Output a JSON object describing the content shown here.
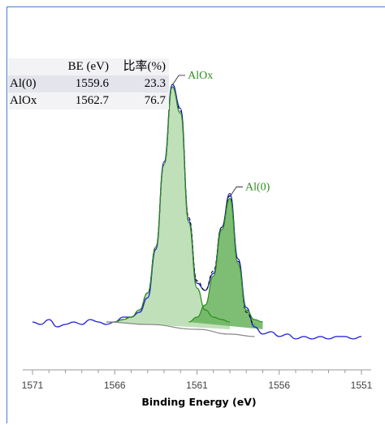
{
  "chart_data": {
    "type": "line",
    "title": "",
    "xlabel": "Binding Energy (eV)",
    "ylabel": "",
    "x_reversed": true,
    "xlim": [
      1571,
      1551
    ],
    "x_ticks": [
      1571,
      1566,
      1561,
      1556,
      1551
    ],
    "grid": false,
    "table": {
      "headers": [
        "",
        "BE (eV)",
        "比率(%)"
      ],
      "rows": [
        [
          "Al(0)",
          "1559.6",
          "23.3"
        ],
        [
          "AlOx",
          "1562.7",
          "76.7"
        ]
      ]
    },
    "annotations": [
      {
        "text": "AlOx",
        "x": 1562.2,
        "color": "#2e8b1e"
      },
      {
        "text": "Al(0)",
        "x": 1559.1,
        "color": "#2e8b1e"
      }
    ],
    "series": [
      {
        "role": "raw-data",
        "color": "#1a1ad6",
        "x": [
          1571.0,
          1570.5,
          1570.0,
          1569.5,
          1569.0,
          1568.5,
          1568.0,
          1567.5,
          1567.0,
          1566.5,
          1566.0,
          1565.5,
          1565.0,
          1564.5,
          1564.0,
          1563.5,
          1563.0,
          1562.5,
          1562.0,
          1561.5,
          1561.0,
          1560.5,
          1560.0,
          1559.5,
          1559.0,
          1558.5,
          1558.0,
          1557.5,
          1557.0,
          1556.5,
          1556.0,
          1555.5,
          1555.0,
          1554.5,
          1554.0,
          1553.5,
          1553.0,
          1552.5,
          1552.0,
          1551.5,
          1551.0
        ],
        "y": [
          0.0,
          -0.01,
          0.01,
          -0.02,
          -0.01,
          0.0,
          -0.01,
          0.01,
          0.0,
          -0.01,
          0.0,
          0.02,
          0.02,
          0.04,
          0.1,
          0.3,
          0.66,
          0.98,
          0.88,
          0.42,
          0.16,
          0.13,
          0.2,
          0.39,
          0.53,
          0.26,
          0.06,
          -0.02,
          -0.05,
          -0.04,
          -0.06,
          -0.05,
          -0.07,
          -0.06,
          -0.07,
          -0.06,
          -0.07,
          -0.06,
          -0.06,
          -0.07,
          -0.06
        ]
      },
      {
        "role": "fit-envelope",
        "color": "#111111",
        "dashed": true,
        "x": [
          1566.0,
          1565.5,
          1565.0,
          1564.5,
          1564.0,
          1563.5,
          1563.0,
          1562.5,
          1562.0,
          1561.5,
          1561.0,
          1560.5,
          1560.0,
          1559.5,
          1559.0,
          1558.5,
          1558.0,
          1557.5
        ],
        "y": [
          0.0,
          0.01,
          0.02,
          0.05,
          0.12,
          0.31,
          0.65,
          0.97,
          0.87,
          0.43,
          0.17,
          0.13,
          0.21,
          0.39,
          0.52,
          0.25,
          0.04,
          -0.01
        ]
      },
      {
        "role": "AlOx-component",
        "color": "#2e8b1e",
        "fill": "#b5dbad",
        "x": [
          1566.5,
          1566.0,
          1565.5,
          1565.0,
          1564.5,
          1564.0,
          1563.5,
          1563.0,
          1562.5,
          1562.0,
          1561.5,
          1561.0,
          1560.5,
          1560.0,
          1559.5,
          1559.0
        ],
        "y": [
          0.0,
          0.0,
          0.01,
          0.02,
          0.05,
          0.12,
          0.31,
          0.65,
          0.97,
          0.86,
          0.41,
          0.14,
          0.05,
          0.02,
          0.01,
          0.0
        ]
      },
      {
        "role": "Al(0)-component",
        "color": "#2e8b1e",
        "fill": "#67b35c",
        "x": [
          1561.5,
          1561.0,
          1560.5,
          1560.0,
          1559.5,
          1559.0,
          1558.5,
          1558.0,
          1557.5,
          1557.0
        ],
        "y": [
          0.0,
          0.02,
          0.07,
          0.19,
          0.38,
          0.51,
          0.24,
          0.05,
          0.01,
          0.0
        ]
      },
      {
        "role": "background",
        "color": "#888888",
        "x": [
          1566.5,
          1564.0,
          1561.0,
          1559.0,
          1557.5
        ],
        "y": [
          0.0,
          -0.01,
          -0.03,
          -0.05,
          -0.06
        ]
      }
    ]
  }
}
